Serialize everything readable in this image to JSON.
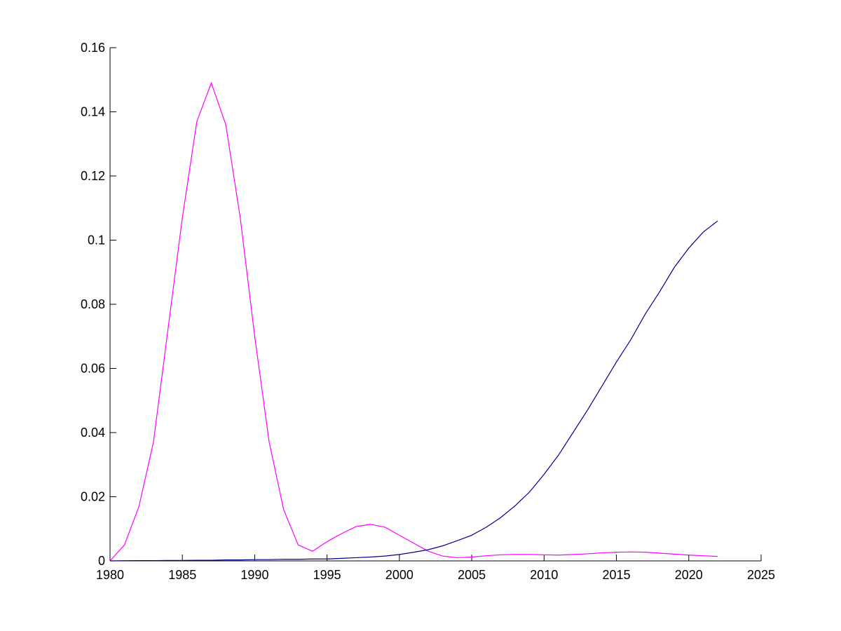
{
  "chart_data": {
    "type": "line",
    "x": [
      1980,
      1981,
      1982,
      1983,
      1984,
      1985,
      1986,
      1987,
      1988,
      1989,
      1990,
      1991,
      1992,
      1993,
      1994,
      1995,
      1996,
      1997,
      1998,
      1999,
      2000,
      2001,
      2002,
      2003,
      2004,
      2005,
      2006,
      2007,
      2008,
      2009,
      2010,
      2011,
      2012,
      2013,
      2014,
      2015,
      2016,
      2017,
      2018,
      2019,
      2020,
      2021,
      2022
    ],
    "series": [
      {
        "color": "#ff00ff",
        "values": [
          0,
          0.005,
          0.017,
          0.037,
          0.072,
          0.107,
          0.137,
          0.149,
          0.136,
          0.107,
          0.07,
          0.037,
          0.016,
          0.005,
          0.003,
          0.006,
          0.0085,
          0.0107,
          0.0114,
          0.0105,
          0.008,
          0.0055,
          0.003,
          0.0015,
          0.001,
          0.0012,
          0.0016,
          0.0019,
          0.002,
          0.002,
          0.0019,
          0.0018,
          0.002,
          0.0022,
          0.0025,
          0.0027,
          0.0028,
          0.0027,
          0.0024,
          0.0021,
          0.0018,
          0.0016,
          0.0014
        ]
      },
      {
        "color": "#00008b",
        "values": [
          0,
          5e-05,
          0.0001,
          0.0001,
          0.00015,
          0.00015,
          0.0002,
          0.0002,
          0.0003,
          0.0003,
          0.0004,
          0.0004,
          0.0005,
          0.0005,
          0.0006,
          0.0006,
          0.0008,
          0.001,
          0.0012,
          0.0015,
          0.002,
          0.0027,
          0.0035,
          0.0047,
          0.0063,
          0.008,
          0.0105,
          0.0135,
          0.0172,
          0.0215,
          0.027,
          0.033,
          0.04,
          0.047,
          0.0545,
          0.062,
          0.069,
          0.077,
          0.084,
          0.0915,
          0.0975,
          0.1025,
          0.106
        ]
      }
    ],
    "xlim": [
      1980,
      2025
    ],
    "xticks": [
      1980,
      1985,
      1990,
      1995,
      2000,
      2005,
      2010,
      2015,
      2020,
      2025
    ],
    "ylim": [
      0,
      0.16
    ],
    "yticks": [
      0,
      0.02,
      0.04,
      0.06,
      0.08,
      0.1,
      0.12,
      0.14,
      0.16
    ]
  }
}
